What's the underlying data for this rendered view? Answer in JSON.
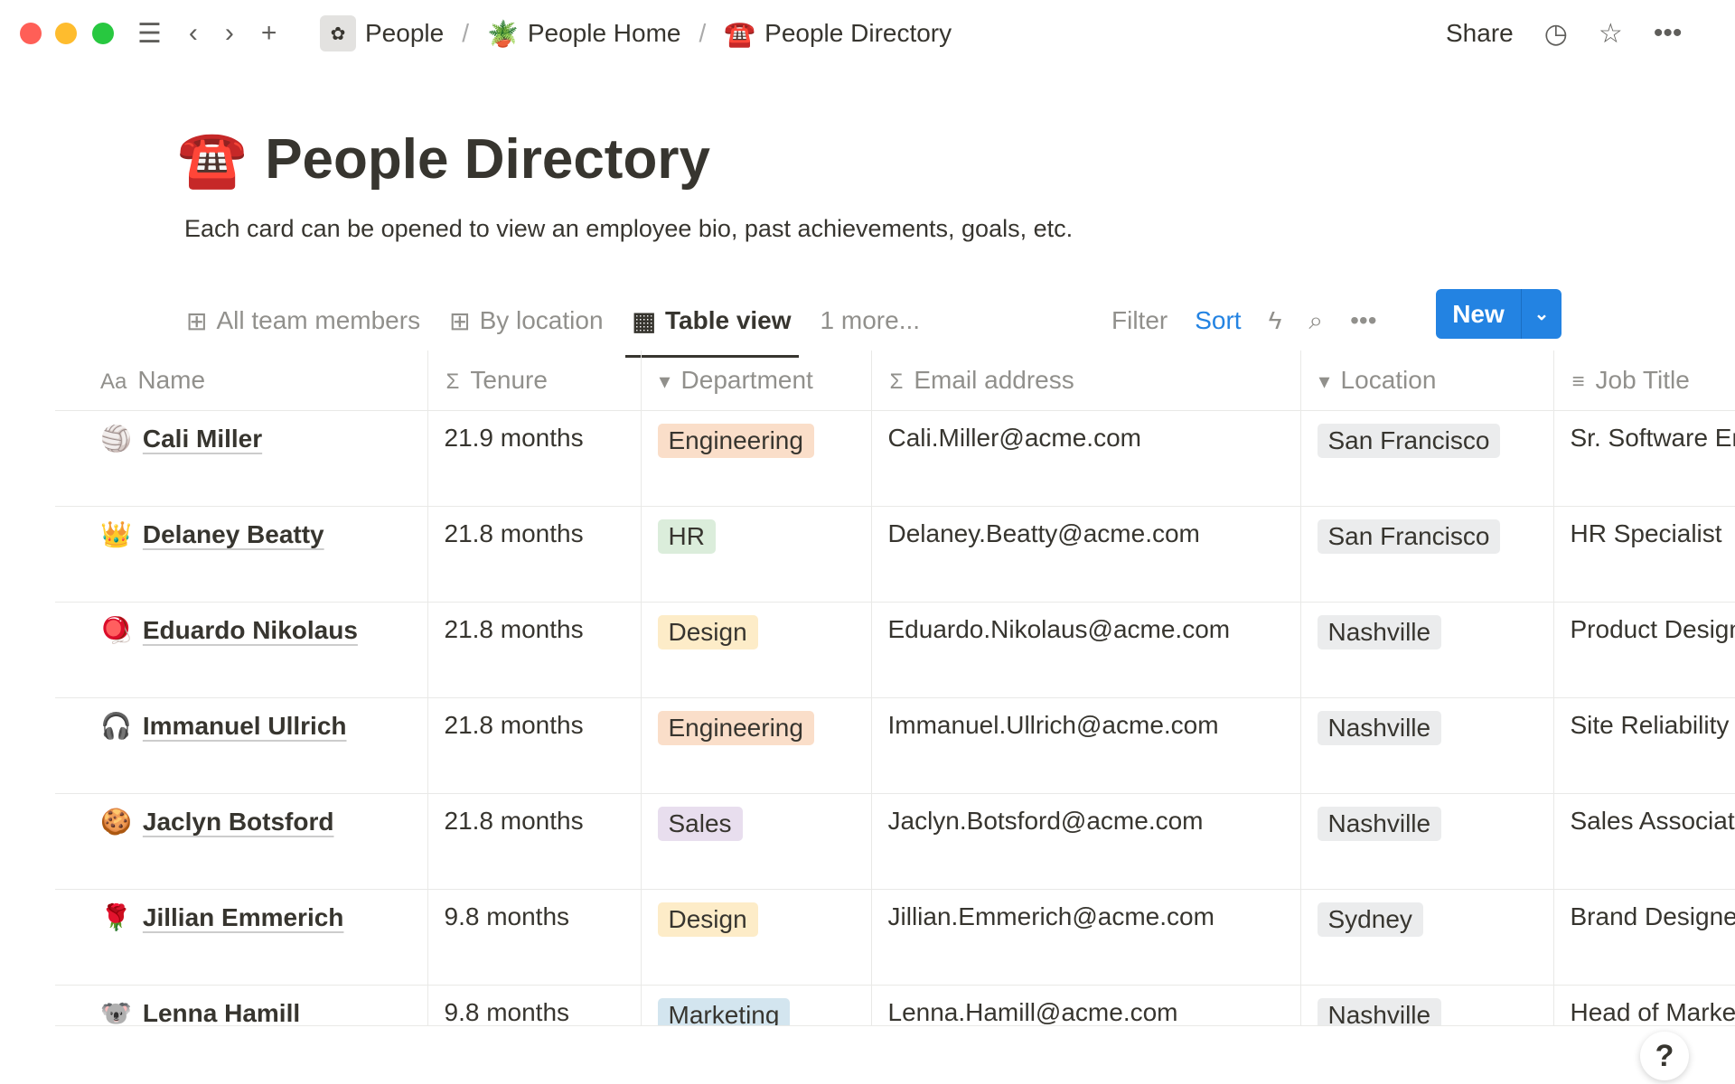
{
  "titlebar": {
    "breadcrumbs": [
      {
        "icon": "flower-icon",
        "label": "People"
      },
      {
        "icon": "🪴",
        "label": "People Home"
      },
      {
        "icon": "☎️",
        "label": "People Directory"
      }
    ],
    "share": "Share"
  },
  "page": {
    "icon": "☎️",
    "title": "People Directory",
    "description": "Each card can be opened to view an employee bio, past achievements, goals, etc."
  },
  "views": {
    "tabs": [
      "All team members",
      "By location",
      "Table view"
    ],
    "more": "1 more...",
    "filter": "Filter",
    "sort": "Sort",
    "new": "New"
  },
  "table": {
    "headers": [
      {
        "icon": "Aa",
        "label": "Name"
      },
      {
        "icon": "Σ",
        "label": "Tenure"
      },
      {
        "icon": "▾",
        "label": "Department"
      },
      {
        "icon": "Σ",
        "label": "Email address"
      },
      {
        "icon": "▾",
        "label": "Location"
      },
      {
        "icon": "≡",
        "label": "Job Title"
      }
    ],
    "rows": [
      {
        "emoji": "🏐",
        "name": "Cali Miller",
        "tenure": "21.9 months",
        "dept": "Engineering",
        "dept_color": "#fadec9",
        "email": "Cali.Miller@acme.com",
        "location": "San Francisco",
        "title": "Sr. Software Engineer"
      },
      {
        "emoji": "👑",
        "name": "Delaney Beatty",
        "tenure": "21.8 months",
        "dept": "HR",
        "dept_color": "#dbeddb",
        "email": "Delaney.Beatty@acme.com",
        "location": "San Francisco",
        "title": "HR Specialist"
      },
      {
        "emoji": "🪀",
        "name": "Eduardo Nikolaus",
        "tenure": "21.8 months",
        "dept": "Design",
        "dept_color": "#fdecc8",
        "email": "Eduardo.Nikolaus@acme.com",
        "location": "Nashville",
        "title": "Product Designer"
      },
      {
        "emoji": "🎧",
        "name": "Immanuel Ullrich",
        "tenure": "21.8 months",
        "dept": "Engineering",
        "dept_color": "#fadec9",
        "email": "Immanuel.Ullrich@acme.com",
        "location": "Nashville",
        "title": "Site Reliability Engineer"
      },
      {
        "emoji": "🍪",
        "name": "Jaclyn Botsford",
        "tenure": "21.8 months",
        "dept": "Sales",
        "dept_color": "#e8deee",
        "email": "Jaclyn.Botsford@acme.com",
        "location": "Nashville",
        "title": "Sales Associate"
      },
      {
        "emoji": "🌹",
        "name": "Jillian Emmerich",
        "tenure": "9.8 months",
        "dept": "Design",
        "dept_color": "#fdecc8",
        "email": "Jillian.Emmerich@acme.com",
        "location": "Sydney",
        "title": "Brand Designer"
      },
      {
        "emoji": "🐨",
        "name": "Lenna Hamill",
        "tenure": "9.8 months",
        "dept": "Marketing",
        "dept_color": "#d3e5ef",
        "email": "Lenna.Hamill@acme.com",
        "location": "Nashville",
        "title": "Head of Marketing"
      }
    ]
  },
  "help": "?"
}
